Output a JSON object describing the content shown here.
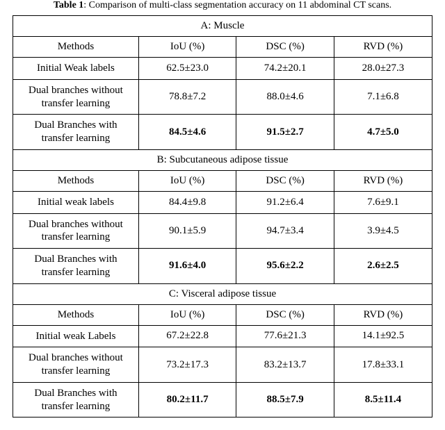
{
  "caption": {
    "label": "Table 1",
    "text": ": Comparison of multi-class segmentation accuracy on 11 abdominal CT scans."
  },
  "columns": {
    "metric1": "IoU (%)",
    "metric2": "DSC (%)",
    "metric3": "RVD (%)",
    "methods": "Methods"
  },
  "sections": [
    {
      "title": "A: Muscle",
      "rows": [
        {
          "method_l1": "Initial Weak labels",
          "method_l2": "",
          "iou": "62.5±23.0",
          "dsc": "74.2±20.1",
          "rvd": "28.0±27.3",
          "bold": false
        },
        {
          "method_l1": "Dual branches without",
          "method_l2": "transfer learning",
          "iou": "78.8±7.2",
          "dsc": "88.0±4.6",
          "rvd": "7.1±6.8",
          "bold": false
        },
        {
          "method_l1": "Dual Branches with",
          "method_l2": "transfer learning",
          "iou": "84.5±4.6",
          "dsc": "91.5±2.7",
          "rvd": "4.7±5.0",
          "bold": true
        }
      ]
    },
    {
      "title": "B: Subcutaneous adipose tissue",
      "rows": [
        {
          "method_l1": "Initial weak labels",
          "method_l2": "",
          "iou": "84.4±9.8",
          "dsc": "91.2±6.4",
          "rvd": "7.6±9.1",
          "bold": false
        },
        {
          "method_l1": "Dual branches without",
          "method_l2": "transfer learning",
          "iou": "90.1±5.9",
          "dsc": "94.7±3.4",
          "rvd": "3.9±4.5",
          "bold": false
        },
        {
          "method_l1": "Dual Branches with",
          "method_l2": "transfer learning",
          "iou": "91.6±4.0",
          "dsc": "95.6±2.2",
          "rvd": "2.6±2.5",
          "bold": true
        }
      ]
    },
    {
      "title": "C: Visceral adipose tissue",
      "rows": [
        {
          "method_l1": "Initial weak Labels",
          "method_l2": "",
          "iou": "67.2±22.8",
          "dsc": "77.6±21.3",
          "rvd": "14.1±92.5",
          "bold": false
        },
        {
          "method_l1": "Dual branches without",
          "method_l2": "transfer learning",
          "iou": "73.2±17.3",
          "dsc": "83.2±13.7",
          "rvd": "17.8±33.1",
          "bold": false
        },
        {
          "method_l1": "Dual Branches with",
          "method_l2": "transfer learning",
          "iou": "80.2±11.7",
          "dsc": "88.5±7.9",
          "rvd": "8.5±11.4",
          "bold": true
        }
      ]
    }
  ],
  "style": {
    "background_color": "#ffffff",
    "border_color": "#000000",
    "font_family": "Times New Roman",
    "body_font_size": 15,
    "caption_font_size": 14,
    "bold_best_row": true,
    "col_widths_pct": [
      30,
      23.3,
      23.3,
      23.4
    ]
  }
}
